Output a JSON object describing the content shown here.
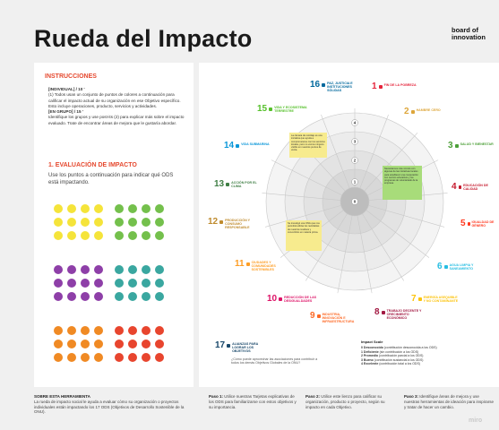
{
  "page": {
    "title": "Rueda del Impacto",
    "logo_line1": "board of",
    "logo_line2": "innovation"
  },
  "instructions": {
    "title": "INSTRUCCIONES",
    "individual_label": "[INDIVIDUAL] / 10 '",
    "individual_text": "(1) Todos usan un conjunto de puntos de colores a continuación para calificar el impacto actual de su organización en ese Objetivo específico. Esto incluye operaciones, producto, servicios y actividades.",
    "group_label": "[EN GRUPO] / 15 '",
    "group_text": "Identifique los grupos y use post-its (2) para explicar más sobre el impacto evaluado. Trate de encontrar áreas de mejora que le gustaría abordar."
  },
  "evaluation": {
    "title": "1. EVALUACIÓN DE IMPACTO",
    "subtitle": "Use los puntos a continuación para indicar qué ODS está impactando."
  },
  "dot_colors": {
    "yellow": "#f5e43a",
    "green": "#74c04c",
    "purple": "#8e3fa8",
    "teal": "#3aa7a0",
    "orange": "#f08a24",
    "red": "#e8452e"
  },
  "sdgs": [
    {
      "num": "1",
      "label": "FIN DE LA POBREZA",
      "color": "#e5243b",
      "icon": "people-icon"
    },
    {
      "num": "2",
      "label": "HAMBRE CERO",
      "color": "#dda63a",
      "icon": "bowl-icon"
    },
    {
      "num": "3",
      "label": "SALUD Y BIENESTAR",
      "color": "#4c9f38",
      "icon": "heartbeat-icon"
    },
    {
      "num": "4",
      "label": "EDUCACIÓN DE CALIDAD",
      "color": "#c5192d",
      "icon": "book-icon"
    },
    {
      "num": "5",
      "label": "IGUALDAD DE GÉNERO",
      "color": "#ff3a21",
      "icon": "gender-icon"
    },
    {
      "num": "6",
      "label": "AGUA LIMPIA Y SANEAMIENTO",
      "color": "#26bde2",
      "icon": "water-icon"
    },
    {
      "num": "7",
      "label": "ENERGÍA ASEQUIBLE Y NO CONTAMINANTE",
      "color": "#fcc30b",
      "icon": "sun-icon"
    },
    {
      "num": "8",
      "label": "TRABAJO DECENTE Y CRECIMIENTO ECONÓMICO",
      "color": "#a21942",
      "icon": "growth-icon"
    },
    {
      "num": "9",
      "label": "INDUSTRIA, INNOVACIÓN E INFRAESTRUCTURA",
      "color": "#fd6925",
      "icon": "cubes-icon"
    },
    {
      "num": "10",
      "label": "REDUCCIÓN DE LAS DESIGUALDADES",
      "color": "#dd1367",
      "icon": "equal-icon"
    },
    {
      "num": "11",
      "label": "CIUDADES Y COMUNIDADES SOSTENIBLES",
      "color": "#fd9d24",
      "icon": "city-icon"
    },
    {
      "num": "12",
      "label": "PRODUCCIÓN Y CONSUMO RESPONSABLE",
      "color": "#bf8b2e",
      "icon": "infinity-icon"
    },
    {
      "num": "13",
      "label": "ACCIÓN POR EL CLIMA",
      "color": "#3f7e44",
      "icon": "eye-icon"
    },
    {
      "num": "14",
      "label": "VIDA SUBMARINA",
      "color": "#0a97d9",
      "icon": "fish-icon"
    },
    {
      "num": "15",
      "label": "VIDA Y ECOSISTEMA TERRESTRE",
      "color": "#56c02b",
      "icon": "tree-icon"
    },
    {
      "num": "16",
      "label": "PAZ, JUSTICIA E INSTITUCIONES SÓLIDAS",
      "color": "#00689d",
      "icon": "dove-icon"
    },
    {
      "num": "17",
      "label": "ALIANZAS PARA LOGRAR LOS OBJETIVOS",
      "color": "#19486a",
      "icon": "rings-icon",
      "desc": "¿Cómo puede aprovechar las asociaciones para contribuir a todos los demás Objetivos Globales de la ONU?"
    }
  ],
  "rings": [
    "0",
    "1",
    "2",
    "3",
    "4"
  ],
  "notes": [
    {
      "text": "La cámara de reciclaje es una iniciativa que ayuda a comprometerse con los servicios locales, pero no vemos ninguno visible en nuestros puntos de venta.",
      "color": "#f7eb8e"
    },
    {
      "text": "Necesitamos más vínculo con algunas de las iniciativas locales para establecer una cooperación con centros educativos y los programas de voluntariado de la empresa.",
      "color": "#a8dc7a"
    },
    {
      "text": "Se investigó una ONG que nos permitirá utilizar los reciclables de nuestros residuos y convertirlos en materia prima.",
      "color": "#f7eb8e"
    }
  ],
  "impact_scale": {
    "title": "Impact Scale",
    "rows": [
      {
        "n": "0 Desconocido",
        "t": "(contribución desconocida a los ODS)"
      },
      {
        "n": "1 Deficiente",
        "t": "(sin contribución a los ODS)"
      },
      {
        "n": "2 Promedio",
        "t": "(contribución parcial a los ODS)"
      },
      {
        "n": "3 Bueno",
        "t": "(contribución sustancial a los ODS)"
      },
      {
        "n": "4 Excelente",
        "t": "(contribución total a los ODS)"
      }
    ]
  },
  "bottom": {
    "about_title": "SOBRE ESTA HERRAMIENTA",
    "about_text": "La rueda de impacto social le ayuda a evaluar cómo su organización o proyectos individuales están impactando los 17 ODS (Objetivos de Desarrollo Sostenible de la ONU).",
    "step1_label": "Paso 1:",
    "step1_text": "Utilice nuestras Tarjetas explicativas de los ODS para familiarizarse con estos objetivos y su importancia.",
    "step2_label": "Paso 2:",
    "step2_text": "Utilice este lienzo para calificar su organización, producto o proyecto, según su impacto en cada Objetivo.",
    "step3_label": "Paso 3:",
    "step3_text": "Identifique áreas de mejora y use nuestras herramientas de ideación para inspirarse y tratar de hacer un cambio.",
    "watermark": "miro"
  }
}
